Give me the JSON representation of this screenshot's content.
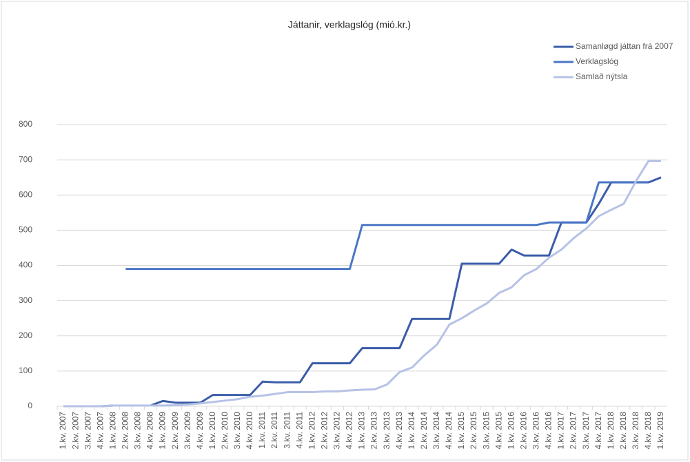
{
  "chart_data": {
    "type": "line",
    "title": "Játtanir, verklagslóg (mió.kr.)",
    "categories": [
      "1.kv. 2007",
      "2.kv. 2007",
      "3.kv. 2007",
      "4.kv. 2007",
      "1.kv. 2008",
      "2.kv. 2008",
      "3.kv. 2008",
      "4.kv. 2008",
      "1.kv. 2009",
      "2.kv. 2009",
      "3.kv. 2009",
      "4.kv. 2009",
      "1.kv. 2010",
      "2.kv. 2010",
      "3.kv. 2010",
      "4.kv. 2010",
      "1.kv. 2011",
      "2.kv. 2011",
      "3.kv. 2011",
      "4.kv. 2011",
      "1.kv. 2012",
      "2.kv. 2012",
      "3.kv. 2012",
      "4.kv. 2012",
      "1.kv. 2013",
      "2.kv. 2013",
      "3.kv. 2013",
      "4.kv. 2013",
      "1.kv. 2014",
      "2.kv. 2014",
      "3.kv. 2014",
      "4.kv. 2014",
      "1.kv. 2015",
      "2.kv. 2015",
      "3.kv. 2015",
      "4.kv. 2015",
      "1.kv. 2016",
      "2.kv. 2016",
      "3.kv. 2016",
      "4.kv. 2016",
      "1.kv. 2017",
      "2.kv. 2017",
      "3.kv. 2017",
      "4.kv. 2017",
      "1.kv. 2018",
      "2.kv. 2018",
      "3.kv. 2018",
      "4.kv. 2018",
      "1.kv. 2019"
    ],
    "series": [
      {
        "name": "Samanløgd játtan frá 2007",
        "color": "#3a5ca8",
        "values": [
          0,
          0,
          0,
          0,
          2,
          2,
          2,
          2,
          15,
          10,
          10,
          10,
          32,
          32,
          32,
          32,
          70,
          68,
          68,
          68,
          122,
          122,
          122,
          122,
          165,
          165,
          165,
          165,
          248,
          248,
          248,
          248,
          405,
          405,
          405,
          405,
          445,
          428,
          428,
          428,
          522,
          522,
          522,
          575,
          636,
          636,
          636,
          636,
          650
        ]
      },
      {
        "name": "Verklagslóg",
        "color": "#4a76c6",
        "values": [
          null,
          null,
          null,
          null,
          null,
          390,
          390,
          390,
          390,
          390,
          390,
          390,
          390,
          390,
          390,
          390,
          390,
          390,
          390,
          390,
          390,
          390,
          390,
          390,
          515,
          515,
          515,
          515,
          515,
          515,
          515,
          515,
          515,
          515,
          515,
          515,
          515,
          515,
          515,
          522,
          522,
          522,
          522,
          636,
          636,
          636,
          636,
          636,
          null
        ]
      },
      {
        "name": "Samlað nýtsla",
        "color": "#b6c2e6",
        "values": [
          0,
          0,
          0,
          0,
          2,
          2,
          2,
          2,
          2,
          3,
          5,
          8,
          12,
          16,
          20,
          27,
          30,
          35,
          40,
          40,
          40,
          42,
          42,
          45,
          47,
          48,
          62,
          97,
          110,
          145,
          175,
          232,
          250,
          272,
          292,
          322,
          338,
          372,
          390,
          422,
          445,
          478,
          505,
          540,
          558,
          575,
          640,
          697,
          697
        ]
      }
    ],
    "ylim": [
      0,
      800
    ],
    "yticks": [
      0,
      100,
      200,
      300,
      400,
      500,
      600,
      700,
      800
    ],
    "grid": true
  }
}
